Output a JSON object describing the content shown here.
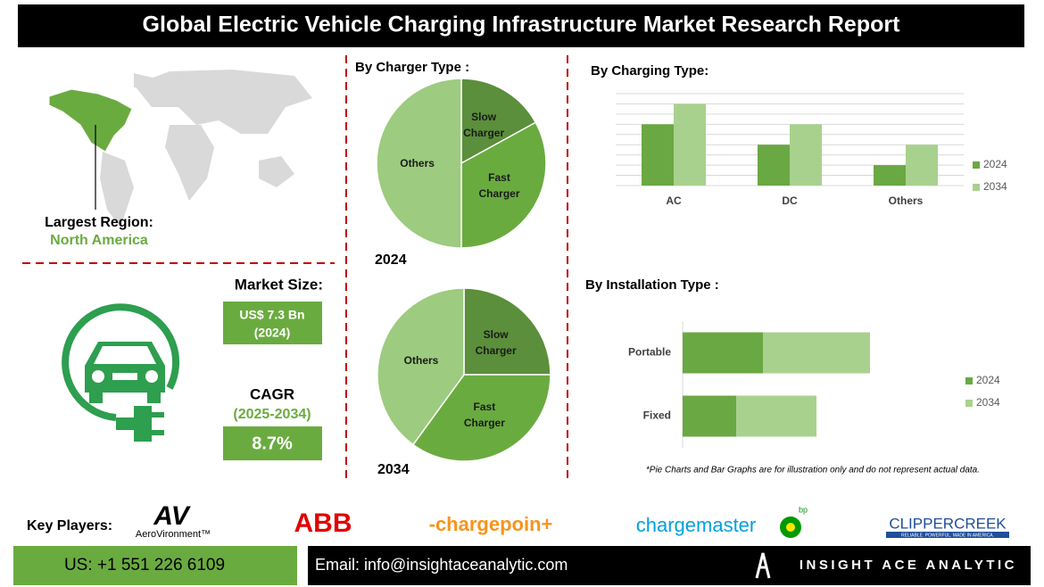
{
  "title": "Global Electric Vehicle Charging Infrastructure Market Research Report",
  "region": {
    "label": "Largest Region:",
    "value": "North America"
  },
  "market_size": {
    "label": "Market Size:",
    "value": "US$ 7.3 Bn",
    "year": "(2024)"
  },
  "cagr": {
    "label": "CAGR",
    "period": "(2025-2034)",
    "value": "8.7%"
  },
  "chart_data": [
    {
      "type": "pie",
      "title": "By Charger Type :",
      "label": "2024",
      "categories": [
        "Slow Charger",
        "Fast Charger",
        "Others"
      ],
      "values": [
        17,
        33,
        50
      ],
      "colors": [
        "#5b8f3b",
        "#6aab40",
        "#9dcb7f"
      ]
    },
    {
      "type": "pie",
      "label": "2034",
      "categories": [
        "Slow Charger",
        "Fast Charger",
        "Others"
      ],
      "values": [
        25,
        35,
        40
      ],
      "colors": [
        "#5b8f3b",
        "#6aab40",
        "#9dcb7f"
      ]
    },
    {
      "type": "bar",
      "title": "By Charging Type:",
      "categories": [
        "AC",
        "DC",
        "Others"
      ],
      "series": [
        {
          "name": "2024",
          "color": "#6aa843",
          "values": [
            6,
            4,
            2
          ]
        },
        {
          "name": "2034",
          "color": "#a9d18e",
          "values": [
            8,
            6,
            4
          ]
        }
      ],
      "ylim": [
        0,
        9
      ],
      "yticks": [
        0,
        1,
        2,
        3,
        4,
        5,
        6,
        7,
        8,
        9
      ],
      "grid": true,
      "legend": "right"
    },
    {
      "type": "stacked-barh",
      "title": "By Installation Type :",
      "categories": [
        "Portable",
        "Fixed"
      ],
      "series": [
        {
          "name": "2024",
          "color": "#6aa843",
          "values": [
            3,
            2
          ]
        },
        {
          "name": "2034",
          "color": "#a9d18e",
          "values": [
            4,
            3
          ]
        }
      ],
      "xlim": [
        0,
        8
      ],
      "legend": "right"
    }
  ],
  "note": "*Pie Charts and Bar Graphs are for illustration only and do not represent actual data.",
  "key_players": {
    "label": "Key Players:",
    "av_mark": "AV",
    "av_name": "AeroVironment™",
    "abb": "ABB",
    "chargepoint": "-chargepoin+",
    "chargemaster": "chargemaster",
    "bp": "bp",
    "clippercreek": "CLIPPERCREEK",
    "clipper_tagline": "RELIABLE. POWERFUL. MADE IN AMERICA."
  },
  "footer": {
    "phone": "US: +1 551 226 6109",
    "email": "Email: info@insightaceanalytic.com",
    "brand": "INSIGHT ACE ANALYTIC"
  }
}
